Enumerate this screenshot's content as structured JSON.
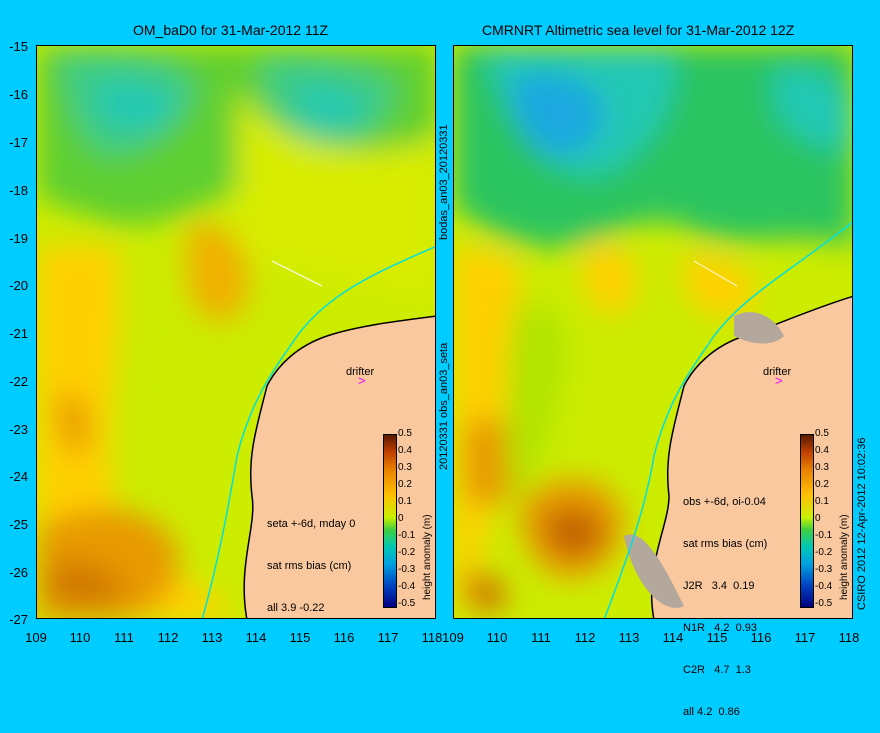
{
  "left_panel": {
    "title": "OM_baD0 for 31-Mar-2012 11Z",
    "drifter_label": "drifter",
    "stats": [
      "seta +-6d, mday 0",
      "sat rms bias (cm)",
      "all 3.9 -0.22"
    ]
  },
  "right_panel": {
    "title": "CMRNRT Altimetric sea level  for 31-Mar-2012 12Z",
    "drifter_label": "drifter",
    "stats": [
      "obs +-6d, oi-0.04",
      "sat rms bias (cm)",
      "J2R   3.4  0.19",
      "N1R   4.2  0.93",
      "C2R   4.7  1.3",
      "all 4.2  0.86"
    ]
  },
  "axes": {
    "y_ticks": [
      "-15",
      "-16",
      "-17",
      "-18",
      "-19",
      "-20",
      "-21",
      "-22",
      "-23",
      "-24",
      "-25",
      "-26",
      "-27"
    ],
    "x_ticks_left": [
      "109",
      "110",
      "111",
      "112",
      "113",
      "114",
      "115",
      "116",
      "117",
      "118"
    ],
    "x_ticks_right": [
      "109",
      "110",
      "111",
      "112",
      "113",
      "114",
      "115",
      "116",
      "117",
      "118"
    ]
  },
  "colorbar": {
    "label": "height anomaly (m)",
    "ticks": [
      "0.5",
      "0.4",
      "0.3",
      "0.2",
      "0.1",
      "0",
      "-0.1",
      "-0.2",
      "-0.3",
      "-0.4",
      "-0.5"
    ]
  },
  "side_text": {
    "left_top": "bodas_an03_20120331",
    "left_bottom": "20120331 obs_an03_seta",
    "right": "CSIRO 2012   12-Apr-2012 10:02:36"
  },
  "colors": {
    "background": "#00ccff",
    "land": "#f9c89f",
    "coast": "#000000",
    "cyan_line": "#00e0e0"
  }
}
